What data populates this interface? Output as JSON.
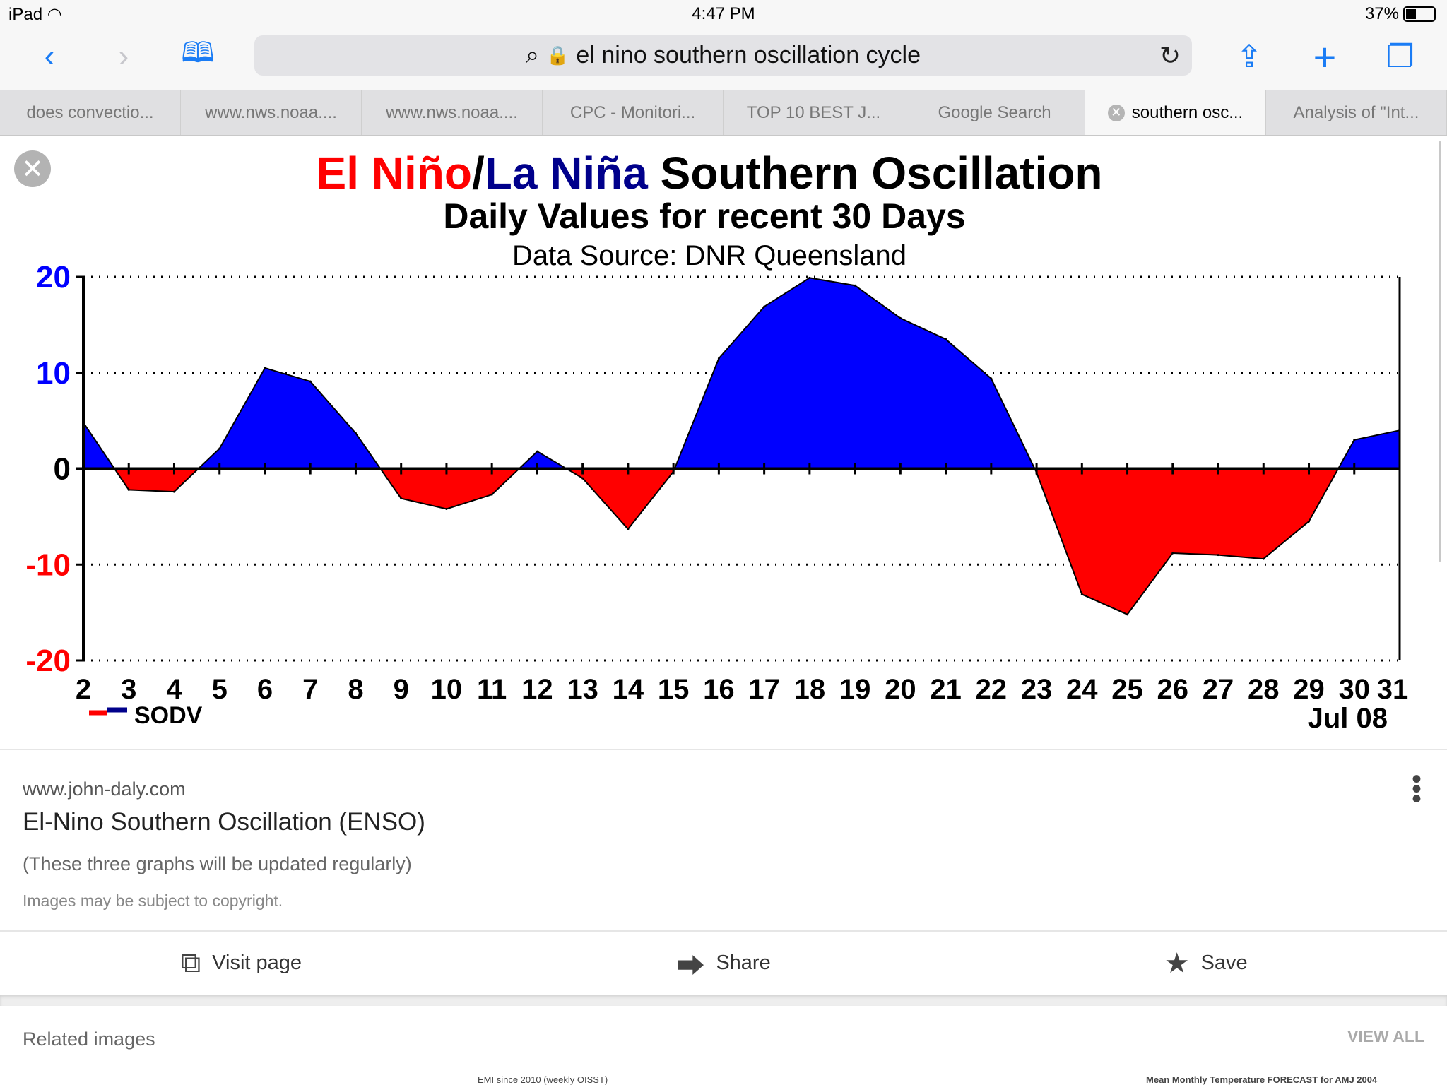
{
  "status": {
    "device": "iPad",
    "time": "4:47 PM",
    "battery": "37%",
    "battery_level": 0.37
  },
  "toolbar": {
    "url_text": "el nino southern oscillation cycle"
  },
  "tabs": [
    {
      "label": "does convectio...",
      "active": false
    },
    {
      "label": "www.nws.noaa....",
      "active": false
    },
    {
      "label": "www.nws.noaa....",
      "active": false
    },
    {
      "label": "CPC - Monitori...",
      "active": false
    },
    {
      "label": "TOP 10 BEST J...",
      "active": false
    },
    {
      "label": "Google Search",
      "active": false
    },
    {
      "label": "southern osc...",
      "active": true
    },
    {
      "label": "Analysis of \"Int...",
      "active": false
    }
  ],
  "chart_data": {
    "type": "area",
    "title_parts": [
      "El Niño",
      "/",
      "La Niña",
      " Southern Oscillation"
    ],
    "subtitle": "Daily Values for recent 30 Days",
    "source": "Data Source: DNR Queensland",
    "x": [
      2,
      3,
      4,
      5,
      6,
      7,
      8,
      9,
      10,
      11,
      12,
      13,
      14,
      15,
      16,
      17,
      18,
      19,
      20,
      21,
      22,
      23,
      24,
      25,
      26,
      27,
      28,
      29,
      30,
      31
    ],
    "values": [
      4.8,
      -2.2,
      -2.4,
      2.1,
      10.5,
      9.1,
      3.7,
      -3.1,
      -4.2,
      -2.7,
      1.8,
      -1.0,
      -6.3,
      -0.3,
      11.5,
      16.9,
      19.9,
      19.1,
      15.7,
      13.5,
      9.4,
      -0.4,
      -13.1,
      -15.2,
      -8.8,
      -9.0,
      -9.4,
      -5.5,
      3.0,
      4.0
    ],
    "yticks": [
      "20",
      "10",
      "0",
      "-10",
      "-20"
    ],
    "ylim": [
      -20,
      20
    ],
    "xlabel": "Jul 08",
    "legend": "SODV",
    "grid": true,
    "colors": {
      "positive": "#0000ff",
      "negative": "#ff0000",
      "el_nino": "#ff0000",
      "la_nina": "#00008b"
    }
  },
  "info": {
    "site": "www.john-daly.com",
    "title": "El-Nino Southern Oscillation (ENSO)",
    "description": "(These three graphs will be updated regularly)",
    "copyright": "Images may be subject to copyright."
  },
  "actions": {
    "visit": "Visit page",
    "share": "Share",
    "save": "Save"
  },
  "related": {
    "heading": "Related images",
    "view_all": "VIEW ALL",
    "thumbs": [
      "EMI since 2010 (weekly OISST)",
      "Mean Monthly Temperature FORECAST for AMJ 2004"
    ]
  }
}
